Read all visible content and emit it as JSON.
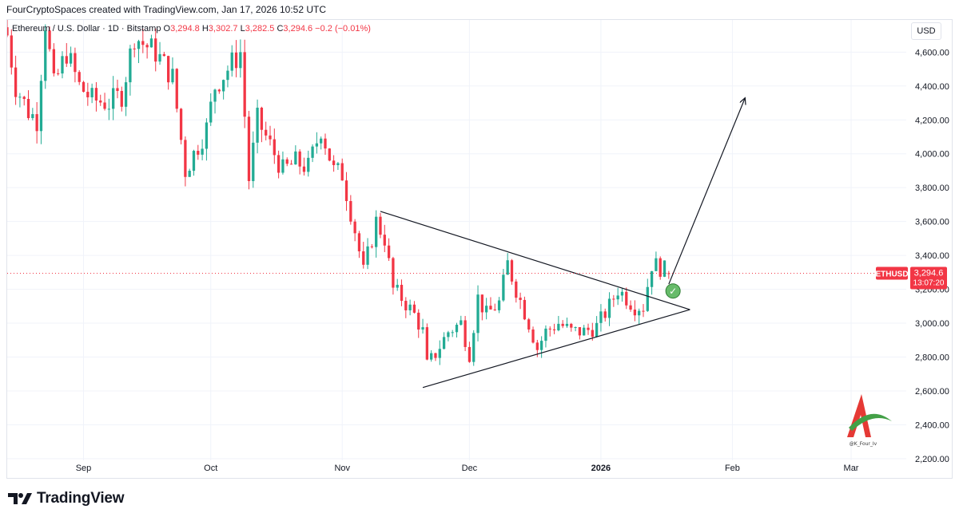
{
  "header": {
    "credit": "FourCryptoSpaces created with TradingView.com, Jan 17, 2026 10:52 UTC"
  },
  "legend": {
    "symbol": "Ethereum / U.S. Dollar · 1D · Bitstamp",
    "o_label": "O",
    "o_value": "3,294.8",
    "h_label": "H",
    "h_value": "3,302.7",
    "l_label": "L",
    "l_value": "3,282.5",
    "c_label": "C",
    "c_value": "3,294.6",
    "change": "−0.2 (−0.01%)"
  },
  "price_scale": {
    "currency": "USD"
  },
  "price_tag": {
    "symbol": "ETHUSD",
    "price": "3,294.6",
    "countdown": "13:07:20"
  },
  "watermark": {
    "handle": "@K_Four_Iv"
  },
  "footer": {
    "brand": "TradingView"
  },
  "colors": {
    "up": "#22ab94",
    "down": "#f23645",
    "grid": "#f0f3fa",
    "text": "#131722",
    "highlight": "#4caf50"
  },
  "chart_data": {
    "type": "candlestick",
    "series_name": "ETHUSD",
    "y_axis": {
      "ticks": [
        2200,
        2400,
        2600,
        2800,
        3000,
        3200,
        3400,
        3600,
        3800,
        4000,
        4200,
        4400,
        4600
      ],
      "tick_labels": [
        "2,200.00",
        "2,400.00",
        "2,600.00",
        "2,800.00",
        "3,000.00",
        "3,200.00",
        "3,400.00",
        "3,600.00",
        "3,800.00",
        "4,000.00",
        "4,200.00",
        "4,400.00",
        "4,600.00"
      ],
      "ylim": [
        2190,
        4790
      ],
      "label": "USD"
    },
    "x_axis": {
      "start": "2025-08-14",
      "end": "2026-03-14",
      "ticks": [
        {
          "date": "2025-09-01",
          "label": "Sep"
        },
        {
          "date": "2025-10-01",
          "label": "Oct"
        },
        {
          "date": "2025-11-01",
          "label": "Nov"
        },
        {
          "date": "2025-12-01",
          "label": "Dec"
        },
        {
          "date": "2026-01-01",
          "label": "2026"
        },
        {
          "date": "2026-02-01",
          "label": "Feb"
        },
        {
          "date": "2026-03-01",
          "label": "Mar"
        }
      ]
    },
    "last_price": 3294.6,
    "anchors": [
      [
        "2025-08-14",
        4700
      ],
      [
        "2025-08-16",
        4400
      ],
      [
        "2025-08-19",
        4250
      ],
      [
        "2025-08-21",
        4200
      ],
      [
        "2025-08-23",
        4780
      ],
      [
        "2025-08-25",
        4400
      ],
      [
        "2025-08-28",
        4600
      ],
      [
        "2025-08-31",
        4400
      ],
      [
        "2025-09-03",
        4320
      ],
      [
        "2025-09-07",
        4300
      ],
      [
        "2025-09-10",
        4350
      ],
      [
        "2025-09-13",
        4700
      ],
      [
        "2025-09-15",
        4650
      ],
      [
        "2025-09-18",
        4600
      ],
      [
        "2025-09-22",
        4450
      ],
      [
        "2025-09-25",
        3900
      ],
      [
        "2025-09-27",
        4000
      ],
      [
        "2025-09-30",
        4150
      ],
      [
        "2025-10-02",
        4400
      ],
      [
        "2025-10-05",
        4500
      ],
      [
        "2025-10-08",
        4600
      ],
      [
        "2025-10-10",
        3850
      ],
      [
        "2025-10-12",
        4200
      ],
      [
        "2025-10-15",
        4050
      ],
      [
        "2025-10-18",
        3900
      ],
      [
        "2025-10-21",
        3950
      ],
      [
        "2025-10-24",
        3920
      ],
      [
        "2025-10-27",
        4150
      ],
      [
        "2025-10-30",
        3900
      ],
      [
        "2025-11-01",
        3880
      ],
      [
        "2025-11-04",
        3550
      ],
      [
        "2025-11-06",
        3300
      ],
      [
        "2025-11-09",
        3600
      ],
      [
        "2025-11-11",
        3500
      ],
      [
        "2025-11-13",
        3200
      ],
      [
        "2025-11-15",
        3150
      ],
      [
        "2025-11-18",
        3050
      ],
      [
        "2025-11-20",
        2950
      ],
      [
        "2025-11-21",
        2750
      ],
      [
        "2025-11-23",
        2820
      ],
      [
        "2025-11-26",
        2950
      ],
      [
        "2025-11-29",
        3000
      ],
      [
        "2025-12-01",
        2820
      ],
      [
        "2025-12-03",
        3150
      ],
      [
        "2025-12-05",
        3050
      ],
      [
        "2025-12-08",
        3120
      ],
      [
        "2025-12-10",
        3350
      ],
      [
        "2025-12-12",
        3200
      ],
      [
        "2025-12-15",
        3000
      ],
      [
        "2025-12-17",
        2850
      ],
      [
        "2025-12-19",
        2950
      ],
      [
        "2025-12-22",
        3000
      ],
      [
        "2025-12-25",
        2950
      ],
      [
        "2025-12-28",
        2950
      ],
      [
        "2025-12-31",
        2980
      ],
      [
        "2026-01-03",
        3100
      ],
      [
        "2026-01-05",
        3200
      ],
      [
        "2026-01-07",
        3150
      ],
      [
        "2026-01-09",
        3100
      ],
      [
        "2026-01-11",
        3100
      ],
      [
        "2026-01-13",
        3350
      ],
      [
        "2026-01-15",
        3330
      ],
      [
        "2026-01-17",
        3294.6
      ]
    ],
    "annotations": {
      "triangle_upper": [
        [
          "2025-11-10",
          3660
        ],
        [
          "2026-01-22",
          3080
        ]
      ],
      "triangle_lower": [
        [
          "2025-11-20",
          2620
        ],
        [
          "2026-01-22",
          3080
        ]
      ],
      "projection_arrow": [
        [
          "2026-01-17",
          3230
        ],
        [
          "2026-02-04",
          4330
        ]
      ],
      "breakout_marker": [
        "2026-01-18",
        3190
      ]
    }
  }
}
